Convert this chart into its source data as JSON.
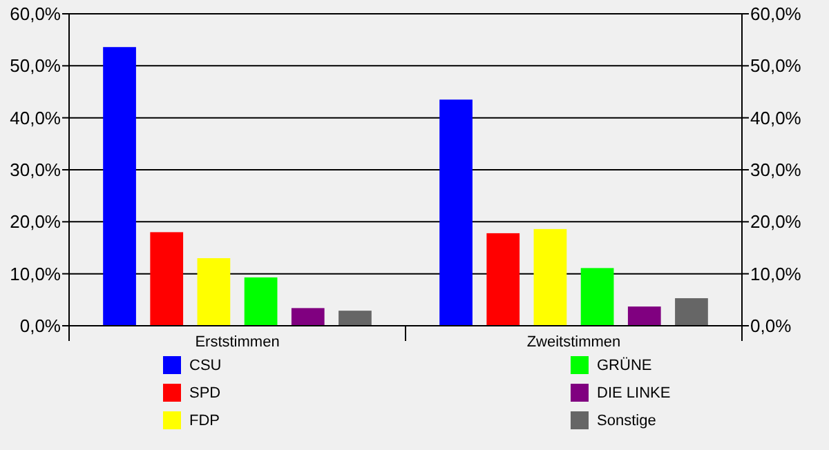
{
  "chart_data": {
    "type": "bar",
    "categories": [
      "Erststimmen",
      "Zweitstimmen"
    ],
    "series": [
      {
        "name": "CSU",
        "color": "#0000ff",
        "values": [
          53.6,
          43.5
        ]
      },
      {
        "name": "SPD",
        "color": "#ff0000",
        "values": [
          18.0,
          17.8
        ]
      },
      {
        "name": "FDP",
        "color": "#ffff00",
        "values": [
          13.0,
          18.6
        ]
      },
      {
        "name": "GRÜNE",
        "color": "#00ff00",
        "values": [
          9.3,
          11.1
        ]
      },
      {
        "name": "DIE LINKE",
        "color": "#800080",
        "values": [
          3.4,
          3.7
        ]
      },
      {
        "name": "Sonstige",
        "color": "#666666",
        "values": [
          2.9,
          5.3
        ]
      }
    ],
    "ylim": [
      0,
      60
    ],
    "yticks": [
      {
        "value": 0,
        "label": "0,0%"
      },
      {
        "value": 10,
        "label": "10,0%"
      },
      {
        "value": 20,
        "label": "20,0%"
      },
      {
        "value": 30,
        "label": "30,0%"
      },
      {
        "value": 40,
        "label": "40,0%"
      },
      {
        "value": 50,
        "label": "50,0%"
      },
      {
        "value": 60,
        "label": "60,0%"
      }
    ],
    "y2lim": [
      0,
      60
    ],
    "y2ticks": [
      {
        "value": 0,
        "label": "0,0%"
      },
      {
        "value": 10,
        "label": "10,0%"
      },
      {
        "value": 20,
        "label": "20,0%"
      },
      {
        "value": 30,
        "label": "30,0%"
      },
      {
        "value": 40,
        "label": "40,0%"
      },
      {
        "value": 50,
        "label": "50,0%"
      },
      {
        "value": 60,
        "label": "60,0%"
      }
    ],
    "grid": "y",
    "legend": "bottom"
  }
}
